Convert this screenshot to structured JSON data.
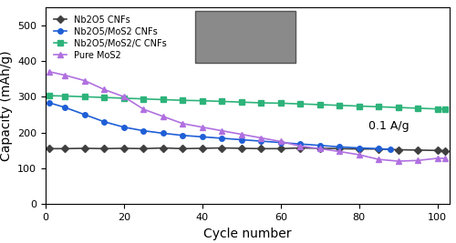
{
  "chart_data": {
    "type": "line",
    "x_label": "Cycle number",
    "y_label": "Capacity (mAh/g)",
    "annotations": [
      "0.1 A/g"
    ],
    "xlim": [
      0,
      103
    ],
    "xticks": [
      0,
      20,
      40,
      60,
      80,
      100
    ],
    "ylim": [
      0,
      550
    ],
    "yticks": [
      0,
      100,
      200,
      300,
      400,
      500
    ],
    "legend": "upper left",
    "series": [
      {
        "name": "Nb2O5 CNFs",
        "color": "#404040",
        "marker": "D",
        "x": [
          1,
          5,
          10,
          15,
          20,
          25,
          30,
          35,
          40,
          45,
          50,
          55,
          60,
          65,
          70,
          75,
          80,
          85,
          90,
          95,
          100,
          102
        ],
        "values": [
          155,
          155,
          156,
          155,
          156,
          155,
          157,
          155,
          156,
          157,
          156,
          155,
          155,
          157,
          156,
          155,
          154,
          154,
          152,
          151,
          150,
          149
        ]
      },
      {
        "name": "Nb2O5/MoS2 CNFs",
        "color": "#1f5fd6",
        "marker": "o",
        "x": [
          1,
          5,
          10,
          15,
          20,
          25,
          30,
          35,
          40,
          45,
          50,
          55,
          60,
          65,
          70,
          75,
          80,
          85,
          88
        ],
        "values": [
          283,
          270,
          250,
          230,
          215,
          205,
          198,
          192,
          188,
          184,
          180,
          176,
          172,
          168,
          164,
          160,
          157,
          155,
          153
        ]
      },
      {
        "name": "Nb2O5/MoS2/C CNFs",
        "color": "#2db37a",
        "marker": "s",
        "x": [
          1,
          5,
          10,
          15,
          20,
          25,
          30,
          35,
          40,
          45,
          50,
          55,
          60,
          65,
          70,
          75,
          80,
          85,
          90,
          95,
          100,
          102
        ],
        "values": [
          303,
          302,
          300,
          298,
          296,
          294,
          292,
          290,
          289,
          287,
          285,
          283,
          282,
          280,
          278,
          276,
          274,
          272,
          270,
          268,
          266,
          265
        ]
      },
      {
        "name": "Pure MoS2",
        "color": "#b070e0",
        "marker": "^",
        "x": [
          1,
          5,
          10,
          15,
          20,
          25,
          30,
          35,
          40,
          45,
          50,
          55,
          60,
          65,
          70,
          75,
          80,
          85,
          90,
          95,
          100,
          102
        ],
        "values": [
          370,
          360,
          345,
          320,
          300,
          265,
          245,
          225,
          215,
          205,
          195,
          185,
          175,
          162,
          155,
          147,
          138,
          125,
          120,
          122,
          128,
          128
        ]
      }
    ]
  }
}
